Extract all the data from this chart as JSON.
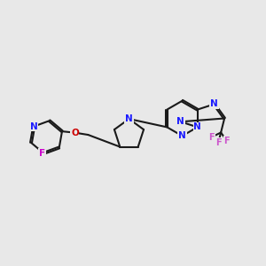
{
  "bg": "#e8e8e8",
  "bond_color": "#1a1a1a",
  "bw": 1.5,
  "dgap": 0.032,
  "N_color": "#1a1aff",
  "O_color": "#cc0000",
  "F_color_left": "#cc00cc",
  "F_color_right": "#cc55cc",
  "fs": 7.5,
  "xlim": [
    0,
    10
  ],
  "ylim": [
    2,
    8
  ]
}
